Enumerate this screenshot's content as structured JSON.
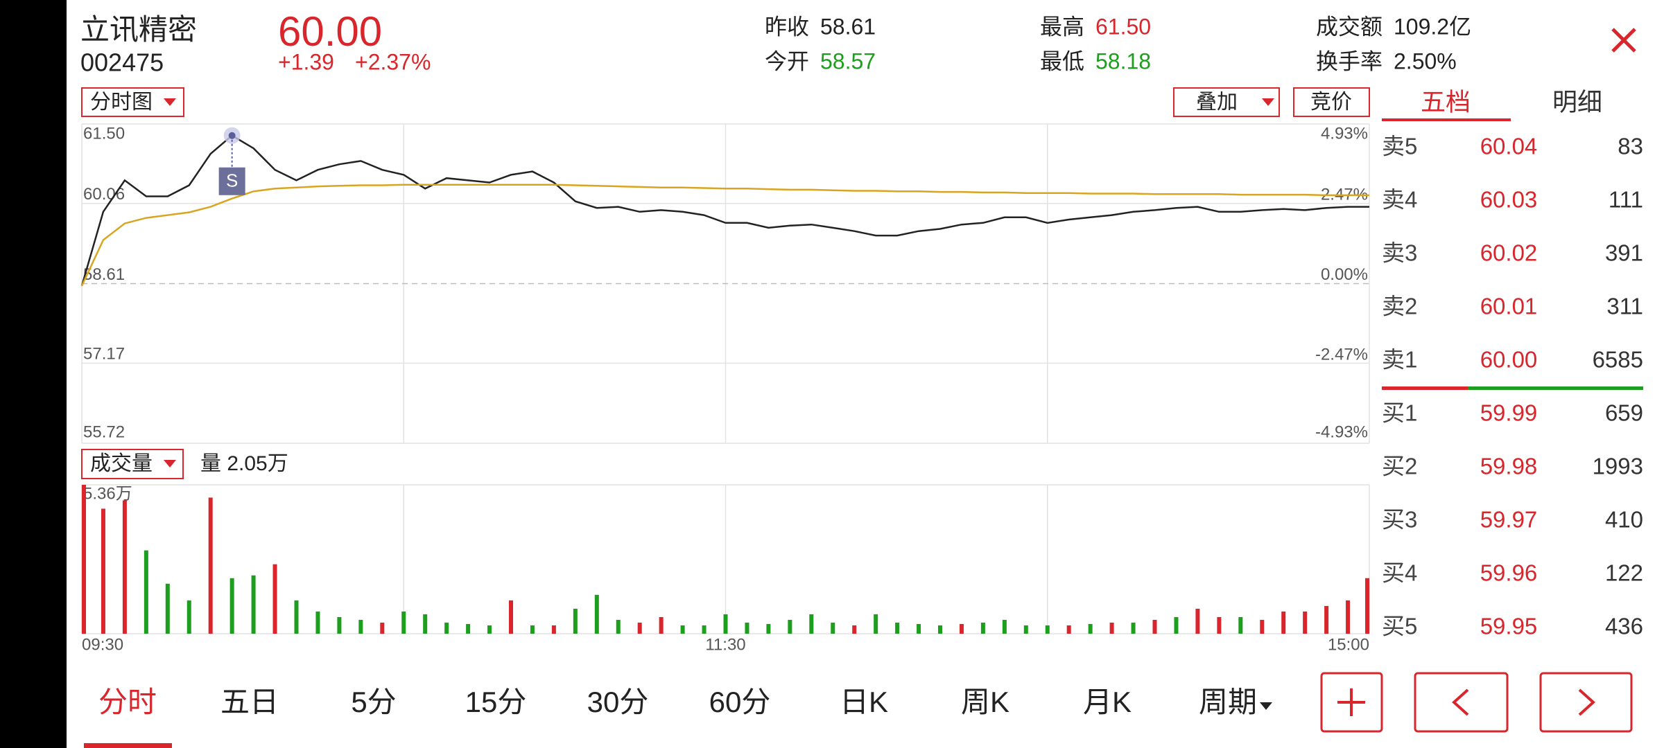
{
  "header": {
    "name": "立讯精密",
    "code": "002475",
    "price": "60.00",
    "change": "+1.39",
    "change_pct": "+2.37%",
    "stats": [
      {
        "label": "昨收",
        "value": "58.61",
        "color": "#222222"
      },
      {
        "label": "今开",
        "value": "58.57",
        "color": "#1e9e1e"
      },
      {
        "label": "最高",
        "value": "61.50",
        "color": "#d8262c"
      },
      {
        "label": "最低",
        "value": "58.18",
        "color": "#1e9e1e"
      },
      {
        "label": "成交额",
        "value": "109.2亿",
        "color": "#222222"
      },
      {
        "label": "换手率",
        "value": "2.50%",
        "color": "#222222"
      }
    ]
  },
  "chart_controls": {
    "mode": "分时图",
    "overlay": "叠加",
    "auction": "竞价"
  },
  "order_book": {
    "tabs": [
      "五档",
      "明细"
    ],
    "asks": [
      {
        "label": "卖5",
        "price": "60.04",
        "volume": "83"
      },
      {
        "label": "卖4",
        "price": "60.03",
        "volume": "111"
      },
      {
        "label": "卖3",
        "price": "60.02",
        "volume": "391"
      },
      {
        "label": "卖2",
        "price": "60.01",
        "volume": "311"
      },
      {
        "label": "卖1",
        "price": "60.00",
        "volume": "6585"
      }
    ],
    "bids": [
      {
        "label": "买1",
        "price": "59.99",
        "volume": "659"
      },
      {
        "label": "买2",
        "price": "59.98",
        "volume": "1993"
      },
      {
        "label": "买3",
        "price": "59.97",
        "volume": "410"
      },
      {
        "label": "买4",
        "price": "59.96",
        "volume": "122"
      },
      {
        "label": "买5",
        "price": "59.95",
        "volume": "436"
      }
    ]
  },
  "chart_data": [
    {
      "type": "line",
      "annotation": "S",
      "grid": true,
      "x": [
        0,
        4,
        8,
        12,
        16,
        20,
        24,
        28,
        32,
        36,
        40,
        44,
        48,
        52,
        56,
        60,
        64,
        68,
        72,
        76,
        80,
        84,
        88,
        92,
        96,
        100,
        104,
        108,
        112,
        116,
        120,
        124,
        128,
        132,
        136,
        140,
        144,
        148,
        152,
        156,
        160,
        164,
        168,
        172,
        176,
        180,
        184,
        188,
        192,
        196,
        200,
        204,
        208,
        212,
        216,
        220,
        224,
        228,
        232,
        236,
        240
      ],
      "xlim": [
        0,
        240
      ],
      "ylim": [
        55.72,
        61.5
      ],
      "yticks": [
        {
          "value": 61.5,
          "label": "61.50"
        },
        60.06,
        58.61,
        57.17,
        55.72
      ],
      "y2lim": [
        -4.93,
        4.93
      ],
      "y2ticks": [
        {
          "value": 4.93,
          "label": "4.93%"
        },
        {
          "value": 2.47,
          "label": "2.47%"
        },
        {
          "value": 0,
          "label": "0.00%"
        },
        {
          "value": -2.47,
          "label": "-2.47%"
        },
        {
          "value": -4.93,
          "label": "-4.93%"
        }
      ],
      "series": [
        {
          "color": "#222222",
          "values": [
            58.57,
            59.91,
            60.48,
            60.19,
            60.19,
            60.39,
            60.96,
            61.29,
            61.06,
            60.67,
            60.48,
            60.67,
            60.77,
            60.83,
            60.67,
            60.58,
            60.33,
            60.52,
            60.48,
            60.44,
            60.58,
            60.64,
            60.44,
            60.1,
            59.98,
            60.0,
            59.91,
            59.94,
            59.91,
            59.85,
            59.71,
            59.71,
            59.62,
            59.66,
            59.68,
            59.62,
            59.56,
            59.48,
            59.48,
            59.56,
            59.6,
            59.68,
            59.71,
            59.81,
            59.81,
            59.71,
            59.77,
            59.81,
            59.85,
            59.91,
            59.94,
            59.98,
            60.0,
            59.91,
            59.91,
            59.94,
            59.96,
            59.94,
            59.98,
            60.0,
            60.0
          ]
        },
        {
          "color": "#d9a520",
          "values": [
            58.57,
            59.4,
            59.7,
            59.8,
            59.85,
            59.9,
            60.0,
            60.15,
            60.28,
            60.33,
            60.35,
            60.37,
            60.38,
            60.39,
            60.39,
            60.4,
            60.4,
            60.4,
            60.4,
            60.4,
            60.4,
            60.4,
            60.4,
            60.39,
            60.38,
            60.37,
            60.36,
            60.35,
            60.35,
            60.34,
            60.33,
            60.33,
            60.32,
            60.31,
            60.31,
            60.3,
            60.29,
            60.29,
            60.28,
            60.28,
            60.27,
            60.27,
            60.26,
            60.26,
            60.25,
            60.25,
            60.25,
            60.24,
            60.24,
            60.24,
            60.23,
            60.23,
            60.23,
            60.23,
            60.22,
            60.22,
            60.22,
            60.22,
            60.21,
            60.21,
            60.21
          ]
        }
      ]
    },
    {
      "type": "bar",
      "selector": "成交量",
      "volume_label": "量 2.05万",
      "grid": true,
      "x": [
        0,
        4,
        8,
        12,
        16,
        20,
        24,
        28,
        32,
        36,
        40,
        44,
        48,
        52,
        56,
        60,
        64,
        68,
        72,
        76,
        80,
        84,
        88,
        92,
        96,
        100,
        104,
        108,
        112,
        116,
        120,
        124,
        128,
        132,
        136,
        140,
        144,
        148,
        152,
        156,
        160,
        164,
        168,
        172,
        176,
        180,
        184,
        188,
        192,
        196,
        200,
        204,
        208,
        212,
        216,
        220,
        224,
        228,
        232,
        236,
        240
      ],
      "xlim": [
        0,
        240
      ],
      "xticks": [
        {
          "value": 0,
          "label": "09:30"
        },
        {
          "value": 120,
          "label": "11:30"
        },
        {
          "value": 240,
          "label": "15:00"
        }
      ],
      "ylim": [
        0,
        5.36
      ],
      "yticks": [
        {
          "value": 5.36,
          "label": "5.36万"
        }
      ],
      "series": [
        {
          "color": "#d8262c",
          "values": [
            5.36,
            4.5,
            4.8,
            null,
            null,
            null,
            4.9,
            null,
            null,
            2.5,
            null,
            null,
            null,
            null,
            0.4,
            null,
            null,
            null,
            null,
            null,
            1.2,
            null,
            0.3,
            null,
            null,
            null,
            0.4,
            0.6,
            null,
            null,
            null,
            null,
            null,
            null,
            null,
            null,
            0.3,
            null,
            null,
            null,
            null,
            0.35,
            null,
            null,
            null,
            null,
            0.3,
            null,
            0.4,
            null,
            0.5,
            null,
            0.9,
            0.6,
            null,
            0.5,
            0.8,
            0.8,
            1.0,
            1.2,
            2.0
          ]
        },
        {
          "color": "#1e9e1e",
          "values": [
            null,
            null,
            null,
            3.0,
            1.8,
            1.2,
            null,
            2.0,
            2.1,
            null,
            1.2,
            0.8,
            0.6,
            0.5,
            null,
            0.8,
            0.7,
            0.4,
            0.35,
            0.3,
            null,
            0.3,
            null,
            0.9,
            1.4,
            0.5,
            null,
            null,
            0.3,
            0.3,
            0.7,
            0.4,
            0.35,
            0.5,
            0.7,
            0.4,
            null,
            0.7,
            0.4,
            0.35,
            0.3,
            null,
            0.4,
            0.5,
            0.3,
            0.3,
            null,
            0.35,
            null,
            0.4,
            null,
            0.6,
            null,
            null,
            0.6,
            null,
            null,
            null,
            null,
            null,
            null
          ]
        }
      ]
    }
  ],
  "bottom_tabs": [
    "分时",
    "五日",
    "5分",
    "15分",
    "30分",
    "60分",
    "日K",
    "周K",
    "月K",
    "周期"
  ]
}
